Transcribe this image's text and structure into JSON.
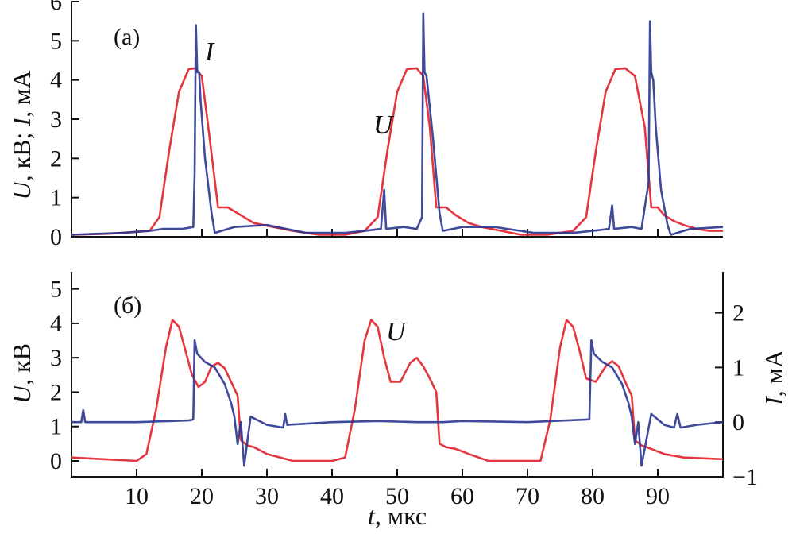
{
  "chart_data": [
    {
      "panel": "(a)",
      "type": "line",
      "xlabel_italic": "t",
      "xlabel_rest": ", мкс",
      "ylabel_parts": [
        "U",
        ", кВ; ",
        "I",
        ", мА"
      ],
      "xlim": [
        0,
        100
      ],
      "ylim": [
        0,
        6
      ],
      "x_ticks": [
        10,
        20,
        30,
        40,
        50,
        60,
        70,
        80,
        90
      ],
      "y_ticks": [
        0,
        1,
        2,
        3,
        4,
        5,
        6
      ],
      "series": [
        {
          "name": "U",
          "color": "#e0202a",
          "x": [
            0,
            6,
            12,
            13.5,
            15,
            16.5,
            18,
            19,
            20,
            21,
            22.5,
            24,
            26,
            28,
            31,
            34,
            38,
            42,
            45,
            47,
            48.5,
            50,
            51.5,
            53,
            54,
            55,
            56,
            57.5,
            59,
            61,
            63,
            66,
            69,
            73,
            77,
            79,
            80.5,
            82,
            83.5,
            85,
            86.5,
            88,
            89,
            90,
            91,
            92.5,
            94,
            96,
            98,
            100
          ],
          "y": [
            0.05,
            0.08,
            0.15,
            0.5,
            2.2,
            3.7,
            4.28,
            4.3,
            4.1,
            2.8,
            0.75,
            0.75,
            0.55,
            0.35,
            0.25,
            0.15,
            0.05,
            0.05,
            0.15,
            0.5,
            2.2,
            3.7,
            4.28,
            4.3,
            4.1,
            2.8,
            0.75,
            0.75,
            0.55,
            0.35,
            0.25,
            0.15,
            0.05,
            0.05,
            0.15,
            0.5,
            2.2,
            3.7,
            4.28,
            4.3,
            4.1,
            2.8,
            0.75,
            0.75,
            0.55,
            0.4,
            0.3,
            0.2,
            0.15,
            0.15
          ]
        },
        {
          "name": "I",
          "color": "#2a3690",
          "x": [
            0,
            8,
            12,
            14,
            17,
            18.7,
            18.9,
            19.1,
            19.3,
            19.6,
            19.8,
            20.5,
            21.5,
            22,
            25,
            30,
            36,
            42,
            45,
            47.5,
            48,
            48.3,
            51,
            53,
            53.8,
            54,
            54.2,
            54.5,
            55.5,
            56.5,
            57,
            60,
            65,
            71,
            77,
            80,
            82.5,
            83,
            83.3,
            86,
            87.5,
            88.6,
            88.8,
            89,
            89.3,
            89.7,
            90.5,
            91.5,
            92,
            95,
            100
          ],
          "y": [
            0.05,
            0.1,
            0.15,
            0.2,
            0.2,
            0.25,
            1.6,
            5.4,
            4.2,
            4.2,
            3.5,
            2,
            0.6,
            0.1,
            0.25,
            0.3,
            0.1,
            0.1,
            0.15,
            0.2,
            1.2,
            0.2,
            0.25,
            0.2,
            0.5,
            5.7,
            4.2,
            4.1,
            2.5,
            0.6,
            0.15,
            0.25,
            0.25,
            0.1,
            0.1,
            0.15,
            0.2,
            0.8,
            0.2,
            0.25,
            0.2,
            1.4,
            5.5,
            4.2,
            4,
            2.8,
            1.2,
            0.3,
            0.05,
            0.2,
            0.25
          ]
        }
      ],
      "annotations": [
        "(a)",
        "I",
        "U"
      ]
    },
    {
      "panel": "(б)",
      "type": "line",
      "xlim": [
        0,
        100
      ],
      "ylim": [
        0,
        5.5
      ],
      "ylim_right": [
        -1,
        2.75
      ],
      "y_ticks": [
        0,
        1,
        2,
        3,
        4,
        5
      ],
      "y_ticks_right": [
        -1,
        0,
        1,
        2
      ],
      "ylabel_parts": [
        "U",
        ", кВ"
      ],
      "ylabel_right_parts": [
        "I",
        ", мА"
      ],
      "series": [
        {
          "name": "U",
          "color": "#e0202a",
          "x": [
            0,
            5,
            10,
            11.5,
            13,
            14.5,
            15.5,
            16.5,
            17.5,
            18.5,
            19.5,
            20.5,
            21.5,
            22.5,
            23.5,
            24.5,
            25.5,
            26,
            27,
            28,
            30,
            34,
            40,
            42,
            43.5,
            45,
            46,
            47,
            48,
            49,
            50.5,
            52,
            53,
            54,
            55,
            56,
            56.5,
            57.5,
            59,
            61,
            64,
            70,
            72,
            73.5,
            75,
            76,
            77,
            78,
            79,
            80.5,
            82,
            83,
            84,
            85,
            86,
            86.5,
            87.5,
            89,
            91,
            94,
            100
          ],
          "y": [
            0.1,
            0.05,
            0.0,
            0.2,
            1.5,
            3.3,
            4.1,
            3.9,
            3.2,
            2.5,
            2.15,
            2.3,
            2.75,
            2.85,
            2.7,
            2.3,
            1.9,
            0.6,
            0.45,
            0.4,
            0.2,
            0.0,
            0.0,
            0.1,
            1.5,
            3.5,
            4.1,
            3.9,
            3.0,
            2.3,
            2.3,
            2.85,
            3.0,
            2.75,
            2.4,
            2.0,
            0.5,
            0.4,
            0.35,
            0.2,
            0.0,
            0.0,
            0.0,
            1.2,
            3.3,
            4.1,
            3.9,
            3.2,
            2.4,
            2.3,
            2.75,
            2.9,
            2.75,
            2.3,
            1.9,
            0.6,
            0.45,
            0.35,
            0.2,
            0.1,
            0.05
          ]
        },
        {
          "name": "I",
          "color": "#2a3690",
          "x": [
            0,
            1.5,
            1.8,
            2.1,
            5,
            10,
            18,
            18.7,
            18.9,
            19.3,
            20.5,
            22,
            23.5,
            24.5,
            25,
            25.5,
            26,
            26.5,
            27.5,
            30,
            32.5,
            32.8,
            33.1,
            40,
            47,
            53,
            55,
            56,
            57,
            60,
            70,
            79.5,
            79.8,
            80.2,
            81.5,
            83,
            84.5,
            85.5,
            86,
            86.5,
            87,
            87.5,
            89,
            91,
            92.5,
            93,
            93.5,
            96,
            100
          ],
          "y": [
            0.0,
            0.0,
            0.22,
            0.0,
            0.0,
            0.0,
            0.03,
            0.05,
            1.5,
            1.25,
            1.1,
            1.0,
            0.7,
            0.35,
            0.1,
            -0.4,
            0.0,
            -0.8,
            0.1,
            -0.05,
            -0.1,
            0.15,
            -0.05,
            0.0,
            0.02,
            0.0,
            0.0,
            0.0,
            0.0,
            0.02,
            0.0,
            0.05,
            1.5,
            1.25,
            1.1,
            1.0,
            0.7,
            0.35,
            0.1,
            -0.4,
            0.0,
            -0.8,
            0.15,
            -0.05,
            -0.1,
            0.15,
            -0.1,
            -0.05,
            0.0
          ]
        }
      ],
      "annotations": [
        "(б)",
        "U"
      ]
    }
  ]
}
